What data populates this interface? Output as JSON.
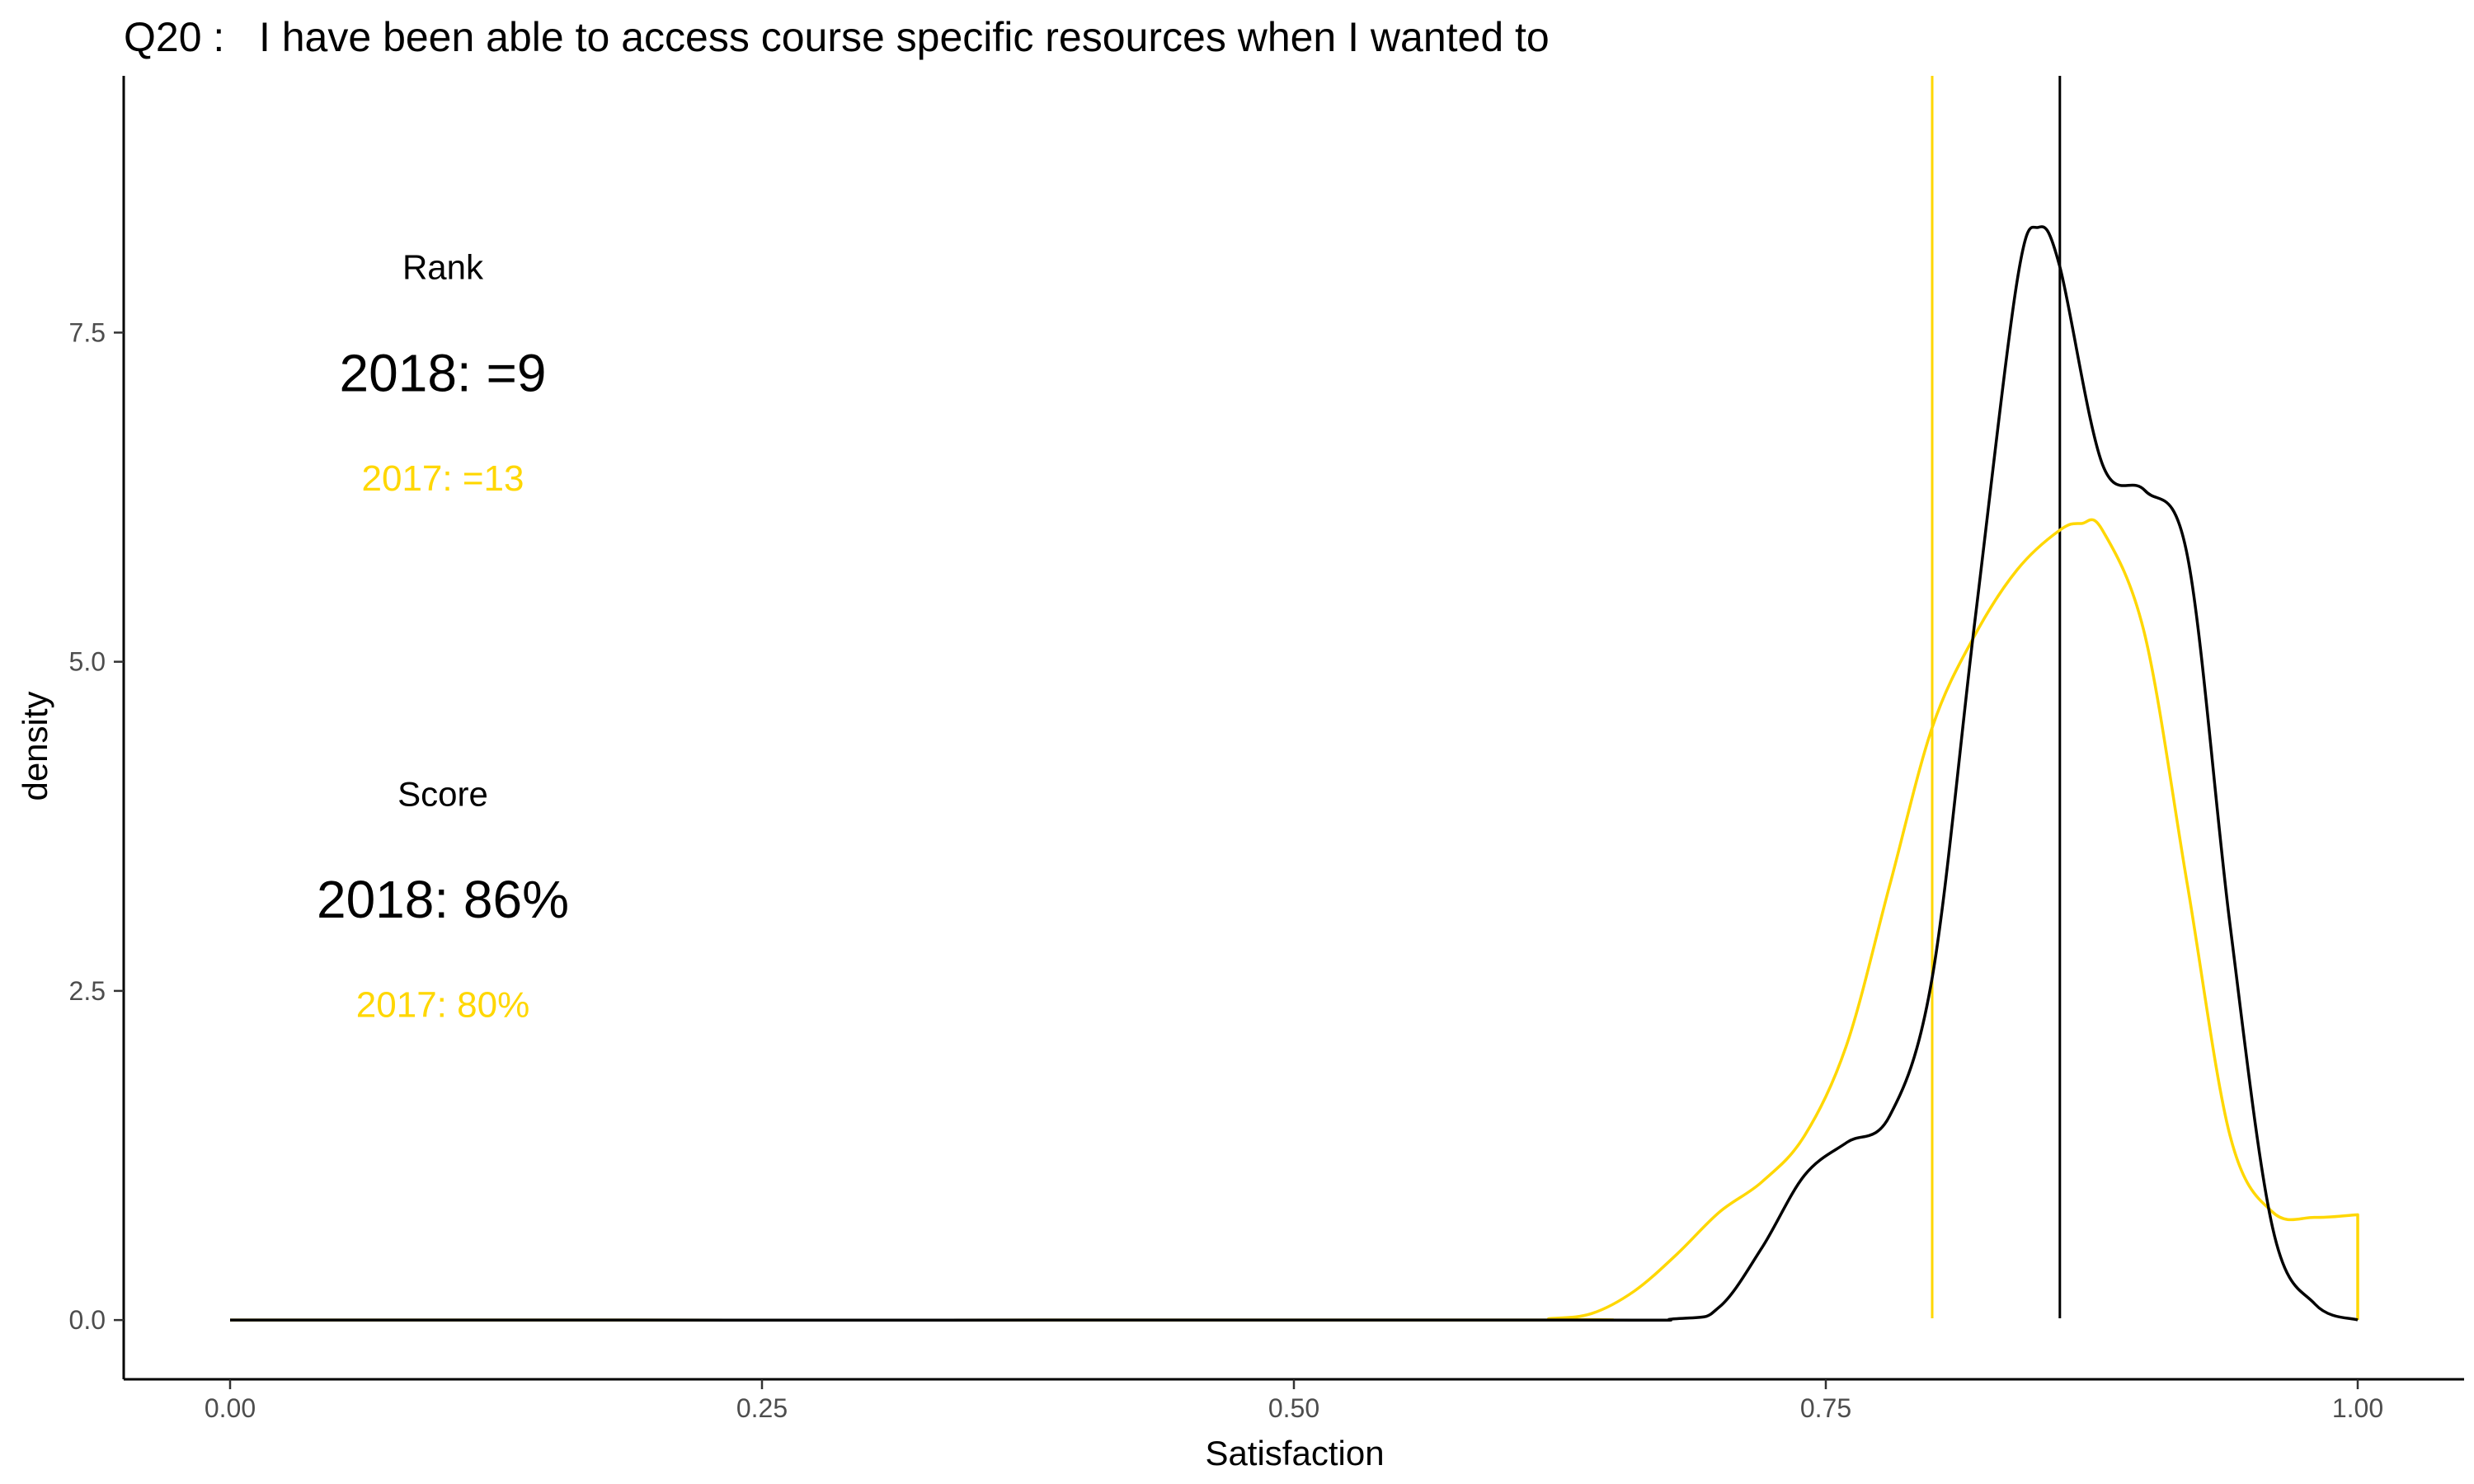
{
  "chart_data": {
    "type": "line",
    "title": "Q20 :   I have been able to access course specific resources when I wanted to",
    "xlabel": "Satisfaction",
    "ylabel": "density",
    "xlim": [
      -0.05,
      1.05
    ],
    "ylim": [
      -0.45,
      9.45
    ],
    "x_ticks": [
      0.0,
      0.25,
      0.5,
      0.75,
      1.0
    ],
    "x_tick_labels": [
      "0.00",
      "0.25",
      "0.50",
      "0.75",
      "1.00"
    ],
    "y_ticks": [
      0.0,
      2.5,
      5.0,
      7.5
    ],
    "y_tick_labels": [
      "0.0",
      "2.5",
      "5.0",
      "7.5"
    ],
    "grid": false,
    "colors": {
      "2018": "#000000",
      "2017": "#FFD700"
    },
    "series": [
      {
        "key": "2018",
        "color": "#000000",
        "x": [
          0.0,
          0.6,
          0.68,
          0.7,
          0.72,
          0.74,
          0.76,
          0.78,
          0.8,
          0.82,
          0.84,
          0.85,
          0.86,
          0.88,
          0.9,
          0.92,
          0.94,
          0.96,
          0.98,
          1.0
        ],
        "y": [
          0.0,
          0.0,
          0.01,
          0.1,
          0.55,
          1.1,
          1.35,
          1.55,
          2.6,
          5.3,
          7.9,
          8.3,
          8.0,
          6.5,
          6.3,
          5.8,
          3.0,
          0.7,
          0.12,
          0.0
        ]
      },
      {
        "key": "2017",
        "color": "#FFD700",
        "x": [
          0.0,
          0.6,
          0.62,
          0.64,
          0.66,
          0.68,
          0.7,
          0.72,
          0.74,
          0.76,
          0.78,
          0.8,
          0.82,
          0.84,
          0.86,
          0.87,
          0.88,
          0.9,
          0.92,
          0.94,
          0.96,
          0.98,
          1.0,
          1.0
        ],
        "y": [
          0.0,
          0.0,
          0.01,
          0.05,
          0.22,
          0.5,
          0.82,
          1.05,
          1.4,
          2.1,
          3.3,
          4.5,
          5.2,
          5.7,
          6.0,
          6.05,
          6.0,
          5.2,
          3.3,
          1.4,
          0.82,
          0.78,
          0.8,
          0.0
        ]
      }
    ],
    "vlines": [
      {
        "key": "2017",
        "x": 0.8,
        "color": "#FFD700"
      },
      {
        "key": "2018",
        "x": 0.86,
        "color": "#000000"
      }
    ],
    "annotations": [
      {
        "key": "rank_label",
        "text": "Rank",
        "x": 0.1,
        "y": 8.0,
        "color": "#000000",
        "size": "small"
      },
      {
        "key": "rank_2018",
        "text": "2018: =9",
        "x": 0.1,
        "y": 7.2,
        "color": "#000000",
        "size": "large"
      },
      {
        "key": "rank_2017",
        "text": "2017: =13",
        "x": 0.1,
        "y": 6.4,
        "color": "#FFD700",
        "size": "medium"
      },
      {
        "key": "score_label",
        "text": "Score",
        "x": 0.1,
        "y": 4.0,
        "color": "#000000",
        "size": "small"
      },
      {
        "key": "score_2018",
        "text": "2018: 86%",
        "x": 0.1,
        "y": 3.2,
        "color": "#000000",
        "size": "large"
      },
      {
        "key": "score_2017",
        "text": "2017: 80%",
        "x": 0.1,
        "y": 2.4,
        "color": "#FFD700",
        "size": "medium"
      }
    ]
  }
}
